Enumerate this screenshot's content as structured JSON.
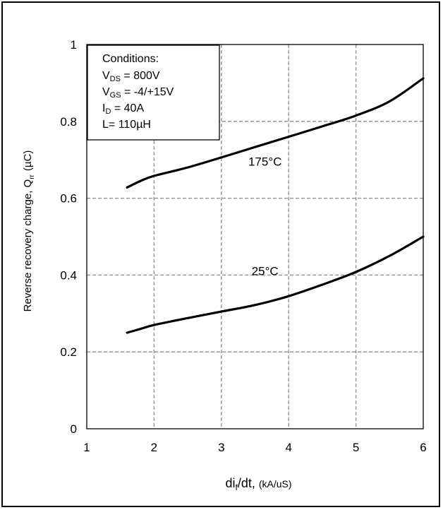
{
  "chart_data": {
    "type": "line",
    "xlabel": {
      "main": "di",
      "sub": "f",
      "rest": "/dt,",
      "units": "(kA/uS)"
    },
    "ylabel": {
      "main": "Reverse  recovery charge, Q",
      "sub": "rr",
      "units": "(µC)"
    },
    "xlim": [
      1,
      6
    ],
    "ylim": [
      0,
      1
    ],
    "x_ticks": [
      "1",
      "2",
      "3",
      "4",
      "5",
      "6"
    ],
    "y_ticks": [
      "0",
      "0.2",
      "0.4",
      "0.6",
      "0.8",
      "1"
    ],
    "grid": true,
    "series": [
      {
        "name": "175°C",
        "x": [
          1.6,
          1.8,
          2.0,
          2.5,
          3.0,
          3.5,
          4.0,
          4.5,
          5.0,
          5.5,
          6.0
        ],
        "y": [
          0.628,
          0.645,
          0.658,
          0.68,
          0.706,
          0.733,
          0.76,
          0.787,
          0.815,
          0.852,
          0.912
        ]
      },
      {
        "name": "25°C",
        "x": [
          1.6,
          1.8,
          2.0,
          2.5,
          3.0,
          3.5,
          4.0,
          4.5,
          5.0,
          5.5,
          6.0
        ],
        "y": [
          0.25,
          0.26,
          0.27,
          0.288,
          0.305,
          0.322,
          0.345,
          0.375,
          0.408,
          0.45,
          0.5
        ]
      }
    ],
    "series_labels": [
      {
        "text": "175°C",
        "x": 3.4,
        "y": 0.685
      },
      {
        "text": "25°C",
        "x": 3.45,
        "y": 0.4
      }
    ],
    "conditions": {
      "title": "Conditions:",
      "lines": [
        {
          "pre": "V",
          "sub": "DS",
          "post": " = 800V"
        },
        {
          "pre": "V",
          "sub": "GS",
          "post": " = -4/+15V"
        },
        {
          "pre": "I",
          "sub": "D",
          "post": " = 40A"
        },
        {
          "pre": "L= 110µH",
          "sub": "",
          "post": ""
        }
      ]
    }
  }
}
